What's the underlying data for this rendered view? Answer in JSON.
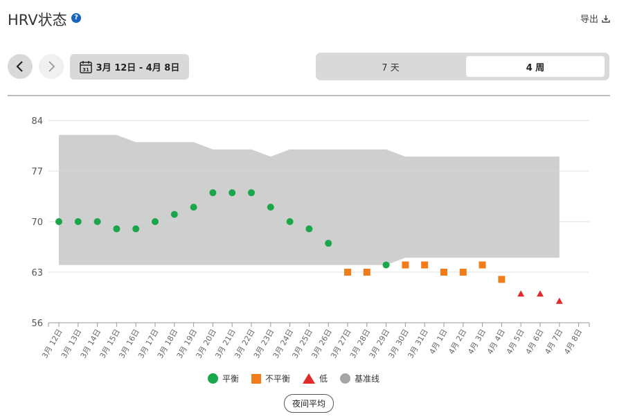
{
  "header": {
    "title": "HRV状态",
    "help_icon": "?",
    "export_label": "导出"
  },
  "toolbar": {
    "date_range": "3月 12日 - 4月 8日",
    "calendar_day": "31",
    "periods": [
      "7 天",
      "4 周"
    ],
    "selected_period": "4 周"
  },
  "legend": {
    "balanced": "平衡",
    "unbalanced": "不平衡",
    "low": "低",
    "baseline": "基准线"
  },
  "avg_button": "夜间平均",
  "colors": {
    "balanced": "#1aa64a",
    "unbalanced": "#f07d1a",
    "low": "#e02b2b",
    "baseline": "#cccccc"
  },
  "chart_data": {
    "type": "scatter",
    "ylim": [
      56,
      84
    ],
    "yticks": [
      56,
      63,
      70,
      77,
      84
    ],
    "categories": [
      "3月 12日",
      "3月 13日",
      "3月 14日",
      "3月 15日",
      "3月 16日",
      "3月 17日",
      "3月 18日",
      "3月 19日",
      "3月 20日",
      "3月 21日",
      "3月 22日",
      "3月 23日",
      "3月 24日",
      "3月 25日",
      "3月 26日",
      "3月 27日",
      "3月 28日",
      "3月 29日",
      "3月 30日",
      "3月 31日",
      "4月 1日",
      "4月 2日",
      "4月 3日",
      "4月 4日",
      "4月 5日",
      "4月 6日",
      "4月 7日",
      "4月 8日"
    ],
    "baseline": {
      "upper": [
        82,
        82,
        82,
        82,
        81,
        81,
        81,
        81,
        80,
        80,
        80,
        79,
        80,
        80,
        80,
        80,
        80,
        80,
        79,
        79,
        79,
        79,
        79,
        79,
        79,
        79,
        79
      ],
      "lower": [
        64,
        64,
        64,
        64,
        64,
        64,
        64,
        64,
        64,
        64,
        64,
        64,
        64,
        64,
        64,
        64,
        64,
        64,
        65,
        65,
        65,
        65,
        65,
        65,
        65,
        65,
        65
      ]
    },
    "series": [
      {
        "name": "平衡",
        "marker": "circle",
        "x": [
          "3月 12日",
          "3月 13日",
          "3月 14日",
          "3月 15日",
          "3月 16日",
          "3月 17日",
          "3月 18日",
          "3月 19日",
          "3月 20日",
          "3月 21日",
          "3月 22日",
          "3月 23日",
          "3月 24日",
          "3月 25日",
          "3月 26日",
          "3月 29日"
        ],
        "values": [
          70,
          70,
          70,
          69,
          69,
          70,
          71,
          72,
          74,
          74,
          74,
          72,
          70,
          69,
          67,
          64
        ]
      },
      {
        "name": "不平衡",
        "marker": "square",
        "x": [
          "3月 27日",
          "3月 28日",
          "3月 30日",
          "3月 31日",
          "4月 1日",
          "4月 2日",
          "4月 3日",
          "4月 4日"
        ],
        "values": [
          63,
          63,
          64,
          64,
          63,
          63,
          64,
          62
        ]
      },
      {
        "name": "低",
        "marker": "triangle",
        "x": [
          "4月 5日",
          "4月 6日",
          "4月 7日"
        ],
        "values": [
          60,
          60,
          59
        ]
      }
    ]
  }
}
